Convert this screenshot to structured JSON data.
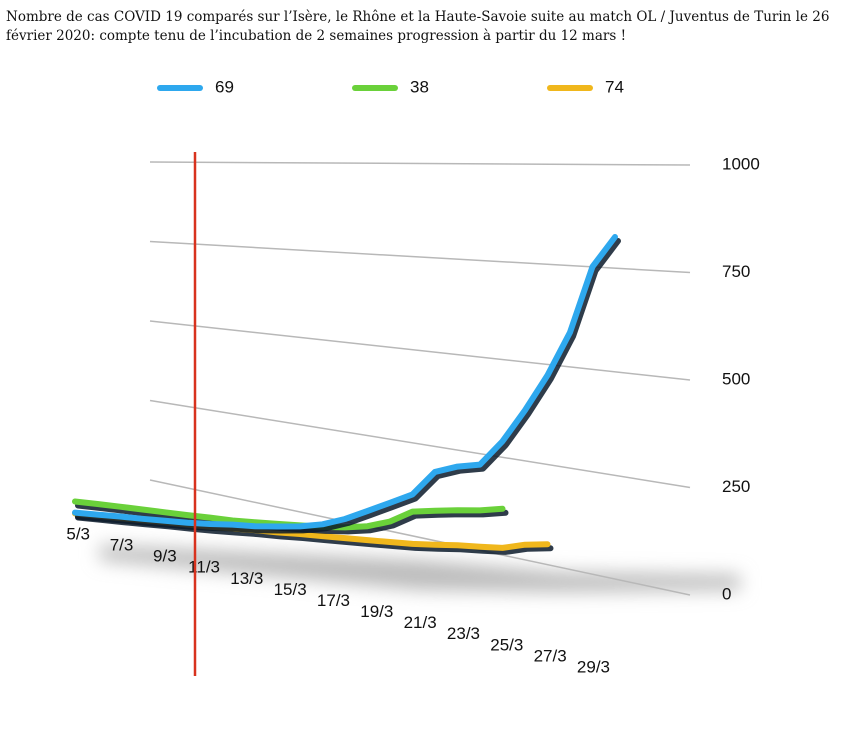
{
  "chart_data": {
    "type": "line3d",
    "title": "Nombre de cas COVID 19 comparés sur l’Isère, le Rhône et la Haute-Savoie suite au match OL / Juventus de Turin le 26 février 2020: compte tenu de l’incubation de 2 semaines progression à partir du 12 mars !",
    "categories": [
      "5/3",
      null,
      "7/3",
      null,
      "9/3",
      null,
      "11/3",
      null,
      "13/3",
      null,
      "15/3",
      null,
      "17/3",
      null,
      "19/3",
      null,
      "21/3",
      null,
      "23/3",
      null,
      "25/3",
      null,
      "27/3",
      null,
      "29/3"
    ],
    "series": [
      {
        "name": "69",
        "color": "#2ea8ee",
        "values": [
          8,
          9,
          10,
          10,
          11,
          12,
          15,
          20,
          22,
          28,
          35,
          48,
          70,
          100,
          130,
          160,
          230,
          250,
          260,
          330,
          420,
          520,
          640,
          820,
          900
        ]
      },
      {
        "name": "38",
        "color": "#6ad13a",
        "values": [
          45,
          44,
          42,
          40,
          38,
          36,
          35,
          33,
          34,
          36,
          38,
          40,
          45,
          55,
          75,
          110,
          118,
          125,
          130,
          140,
          null,
          null,
          null,
          null,
          null
        ]
      },
      {
        "name": "74",
        "color": "#f0b71c",
        "values": [
          5,
          5,
          5,
          5,
          6,
          6,
          6,
          8,
          10,
          10,
          12,
          12,
          13,
          14,
          15,
          16,
          20,
          25,
          27,
          30,
          45,
          52,
          null,
          null,
          null
        ]
      }
    ],
    "ylim": [
      0,
      1000
    ],
    "yticks": [
      0,
      250,
      500,
      750,
      1000
    ],
    "grid": true
  }
}
